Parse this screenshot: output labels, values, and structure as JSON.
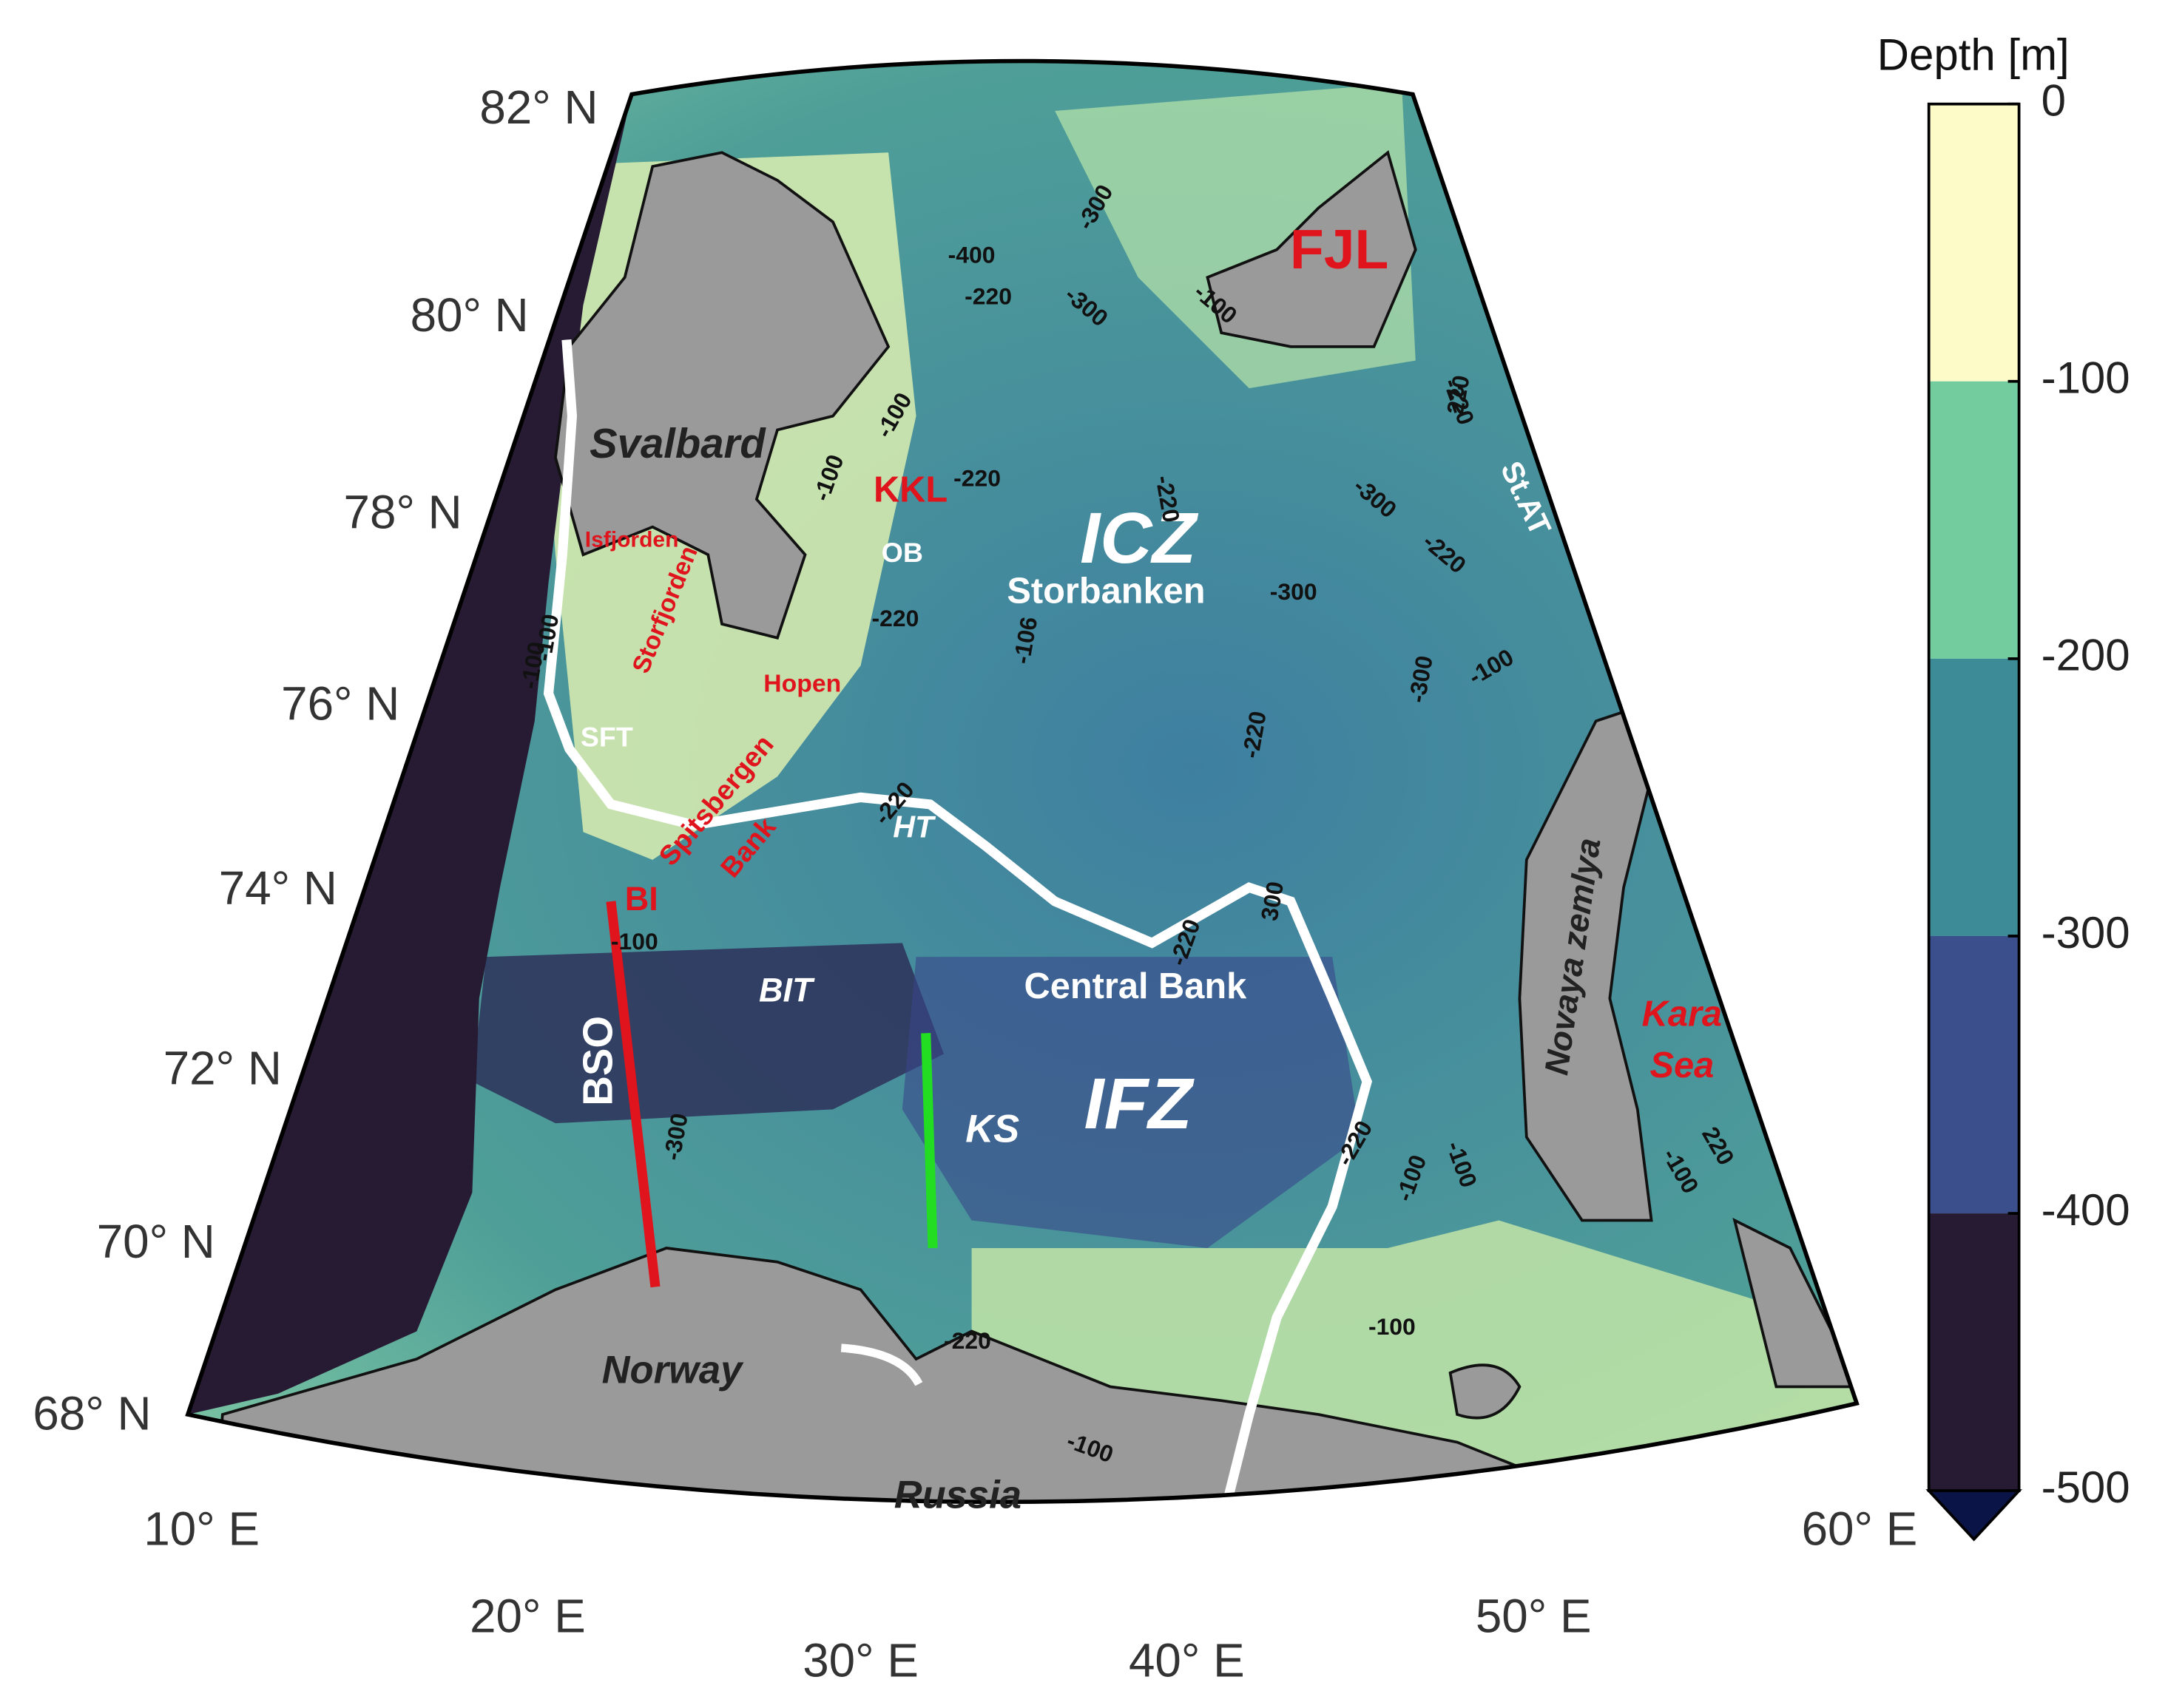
{
  "graticule": {
    "latitude_labels": [
      "82° N",
      "80° N",
      "78° N",
      "76° N",
      "74° N",
      "72° N",
      "70° N",
      "68° N"
    ],
    "longitude_labels": [
      "10° E",
      "20° E",
      "30° E",
      "40° E",
      "50° E",
      "60° E"
    ]
  },
  "place_labels": {
    "red": [
      "FJL",
      "KKL",
      "Isfjorden",
      "Storfjorden",
      "Hopen",
      "Spitsbergen",
      "Bank",
      "BI",
      "Kara",
      "Sea"
    ],
    "white": [
      "ICZ",
      "Storbanken",
      "OB",
      "SFT",
      "HT",
      "BIT",
      "Central Bank",
      "IFZ",
      "KS",
      "BSO",
      "St.AT"
    ],
    "dark": [
      "Svalbard",
      "Norway",
      "Russia",
      "Novaya zemlya"
    ]
  },
  "contour_labels": [
    -400,
    -300,
    -220,
    -300,
    -100,
    -100,
    -220,
    -220,
    -106,
    -220,
    -300,
    -300,
    -220,
    -220,
    -300,
    -100,
    -220,
    -220,
    -100,
    300,
    -220,
    -100,
    -100,
    -100,
    -220,
    -100,
    220,
    -300,
    -100,
    -220,
    -100,
    -100,
    -100,
    220
  ],
  "colorbar": {
    "title": "Depth [m]",
    "lim": [
      0,
      -500
    ],
    "ticks": [
      0,
      -100,
      -200,
      -300,
      -400,
      -500
    ],
    "colors": [
      "#fdfbc8",
      "#72cc9d",
      "#3d8b97",
      "#3b4f8c",
      "#261b33"
    ],
    "extend_color": "#0b1446"
  }
}
